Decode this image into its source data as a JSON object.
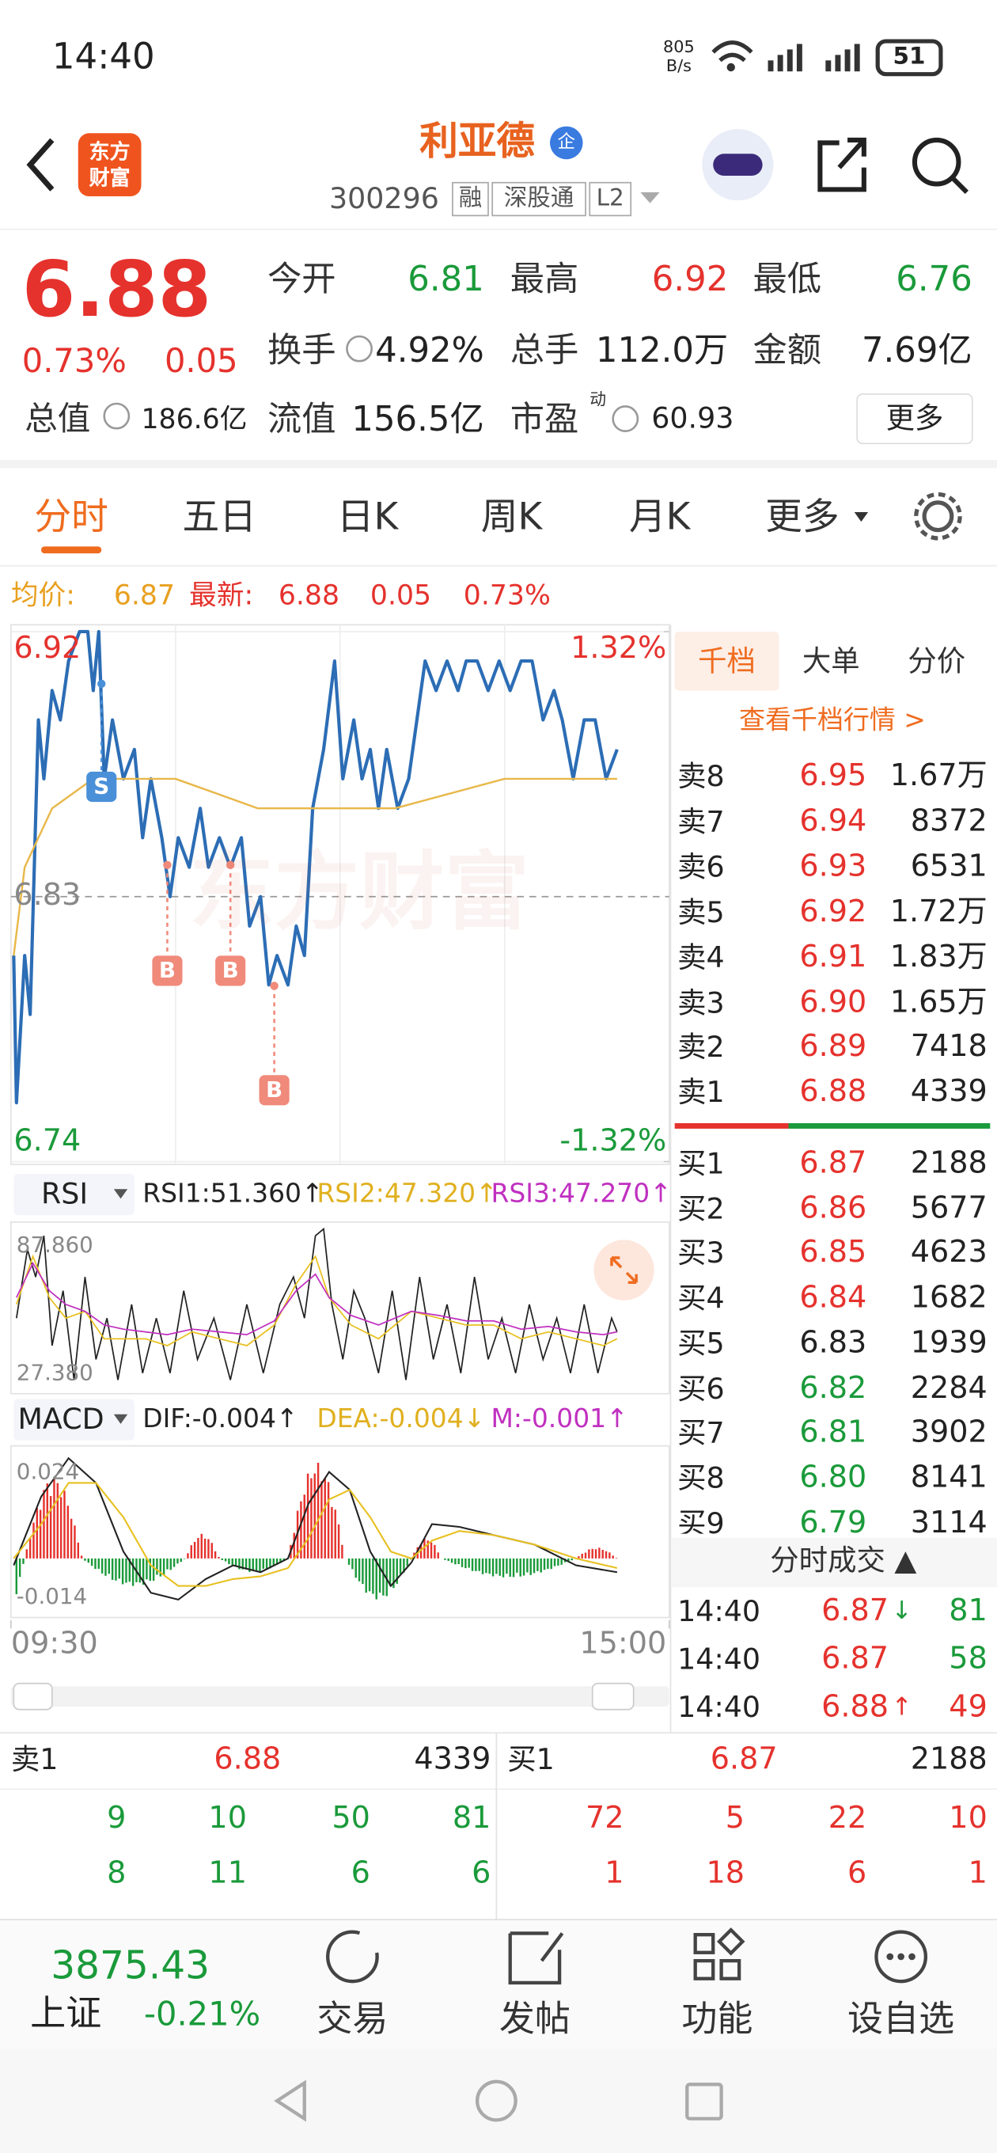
{
  "status_bar": {
    "time": "14:40",
    "net_speed": "805",
    "net_unit": "B/s",
    "battery": "51"
  },
  "header": {
    "logo": [
      "东方",
      "财富"
    ],
    "title": "利亚德",
    "badge": "企",
    "code": "300296",
    "tags": [
      "融",
      "深股通",
      "L2"
    ]
  },
  "quote": {
    "price": "6.88",
    "change_pct": "0.73%",
    "change": "0.05",
    "fields": [
      {
        "label": "今开",
        "value": "6.81",
        "color": "#1a9a3a"
      },
      {
        "label": "最高",
        "value": "6.92",
        "color": "#e5322d"
      },
      {
        "label": "最低",
        "value": "6.76",
        "color": "#1a9a3a"
      },
      {
        "label": "换手",
        "value": "4.92%"
      },
      {
        "label": "总手",
        "value": "112.0万"
      },
      {
        "label": "金额",
        "value": "7.69亿"
      },
      {
        "label": "流值",
        "value": "156.5亿"
      },
      {
        "label": "市盈",
        "value": "60.93",
        "sup": "动"
      }
    ],
    "total_value": {
      "label": "总值",
      "value": "186.6亿"
    },
    "more": "更多"
  },
  "tabs": [
    "分时",
    "五日",
    "日K",
    "周K",
    "月K",
    "更多"
  ],
  "intraday": {
    "avg_label": "均价:",
    "avg": "6.87",
    "latest_label": "最新:",
    "latest": "6.88",
    "change": "0.05",
    "change_pct": "0.73%",
    "watermark": "东方财富",
    "signals": [
      "S",
      "B",
      "B",
      "B"
    ]
  },
  "chart_data": {
    "type": "line",
    "xlim": [
      0,
      240
    ],
    "xticks": [
      {
        "value": 0,
        "label": "09:30"
      },
      {
        "value": 240,
        "label": "15:00"
      }
    ],
    "ylim": [
      6.74,
      6.92
    ],
    "yticks": [
      6.74,
      6.83,
      6.92
    ],
    "y2lim": [
      -1.32,
      1.32
    ],
    "y2ticks": [
      {
        "value": -1.32,
        "label": "-1.32%"
      },
      {
        "value": 1.32,
        "label": "1.32%"
      }
    ],
    "grid": true,
    "series": [
      {
        "color": "#2c6db5",
        "x": [
          1,
          2,
          5,
          7,
          10,
          12,
          15,
          18,
          21,
          25,
          28,
          30,
          32,
          34,
          37,
          41,
          45,
          48,
          51,
          55,
          58,
          61,
          65,
          69,
          72,
          76,
          80,
          84,
          87,
          91,
          94,
          97,
          101,
          104,
          107,
          110,
          114,
          118,
          121,
          125,
          128,
          131,
          134,
          137,
          141,
          145,
          148,
          151,
          155,
          159,
          163,
          166,
          170,
          174,
          178,
          182,
          186,
          190,
          194,
          198,
          201,
          205,
          209,
          213,
          217,
          221
        ],
        "values": [
          6.81,
          6.76,
          6.81,
          6.79,
          6.89,
          6.87,
          6.9,
          6.89,
          6.91,
          6.92,
          6.92,
          6.9,
          6.92,
          6.87,
          6.89,
          6.87,
          6.88,
          6.85,
          6.87,
          6.85,
          6.83,
          6.85,
          6.84,
          6.86,
          6.84,
          6.85,
          6.84,
          6.85,
          6.82,
          6.83,
          6.8,
          6.81,
          6.8,
          6.82,
          6.81,
          6.86,
          6.88,
          6.91,
          6.87,
          6.89,
          6.87,
          6.88,
          6.86,
          6.88,
          6.86,
          6.87,
          6.89,
          6.91,
          6.9,
          6.91,
          6.9,
          6.91,
          6.91,
          6.9,
          6.91,
          6.9,
          6.91,
          6.91,
          6.89,
          6.9,
          6.89,
          6.87,
          6.89,
          6.89,
          6.87,
          6.88
        ]
      },
      {
        "color": "#e8b84a",
        "x": [
          1,
          5,
          15,
          30,
          60,
          90,
          110,
          140,
          180,
          221
        ],
        "values": [
          6.81,
          6.84,
          6.86,
          6.87,
          6.87,
          6.86,
          6.86,
          6.86,
          6.87,
          6.87
        ]
      }
    ]
  },
  "rsi": {
    "name": "RSI",
    "rsi1": "RSI1:51.360↑",
    "rsi2": "RSI2:47.320↑",
    "rsi3": "RSI3:47.270↑",
    "high": "87.860",
    "low": "27.380"
  },
  "macd": {
    "name": "MACD",
    "dif": "DIF:-0.004↑",
    "dea": "DEA:-0.004↓",
    "m": "M:-0.001↑",
    "high": "0.024",
    "low": "-0.014"
  },
  "order_book": {
    "tabs": [
      "千档",
      "大单",
      "分价"
    ],
    "link": "查看千档行情 >",
    "asks": [
      {
        "label": "卖8",
        "price": "6.95",
        "volume": "1.67万"
      },
      {
        "label": "卖7",
        "price": "6.94",
        "volume": "8372"
      },
      {
        "label": "卖6",
        "price": "6.93",
        "volume": "6531"
      },
      {
        "label": "卖5",
        "price": "6.92",
        "volume": "1.72万"
      },
      {
        "label": "卖4",
        "price": "6.91",
        "volume": "1.83万"
      },
      {
        "label": "卖3",
        "price": "6.90",
        "volume": "1.65万"
      },
      {
        "label": "卖2",
        "price": "6.89",
        "volume": "7418"
      },
      {
        "label": "卖1",
        "price": "6.88",
        "volume": "4339"
      }
    ],
    "bids": [
      {
        "label": "买1",
        "price": "6.87",
        "volume": "2188"
      },
      {
        "label": "买2",
        "price": "6.86",
        "volume": "5677"
      },
      {
        "label": "买3",
        "price": "6.85",
        "volume": "4623"
      },
      {
        "label": "买4",
        "price": "6.84",
        "volume": "1682"
      },
      {
        "label": "买5",
        "price": "6.83",
        "volume": "1939"
      },
      {
        "label": "买6",
        "price": "6.82",
        "volume": "2284"
      },
      {
        "label": "买7",
        "price": "6.81",
        "volume": "3902"
      },
      {
        "label": "买8",
        "price": "6.80",
        "volume": "8141"
      },
      {
        "label": "买9",
        "price": "6.79",
        "volume": "3114"
      }
    ],
    "trades_title": "分时成交 ▲",
    "trades": [
      {
        "time": "14:40",
        "price": "6.87",
        "dir": "↓",
        "volume": "81",
        "color": "#1a9a3a"
      },
      {
        "time": "14:40",
        "price": "6.87",
        "volume": "58",
        "color": "#1a9a3a"
      },
      {
        "time": "14:40",
        "price": "6.88",
        "dir": "↑",
        "volume": "49",
        "color": "#e5322d"
      }
    ]
  },
  "level1": {
    "ask": {
      "label": "卖1",
      "price": "6.88",
      "volume": "4339"
    },
    "bid": {
      "label": "买1",
      "price": "6.87",
      "volume": "2188"
    },
    "ask_ticks": [
      [
        "9",
        "10",
        "50",
        "81"
      ],
      [
        "8",
        "11",
        "6",
        "6"
      ]
    ],
    "bid_ticks": [
      [
        "72",
        "5",
        "22",
        "10"
      ],
      [
        "1",
        "18",
        "6",
        "1"
      ]
    ]
  },
  "bottom_nav": {
    "index_value": "3875.43",
    "index_name": "上证",
    "index_change": "-0.21%",
    "items": [
      "交易",
      "发帖",
      "功能",
      "设自选"
    ]
  }
}
